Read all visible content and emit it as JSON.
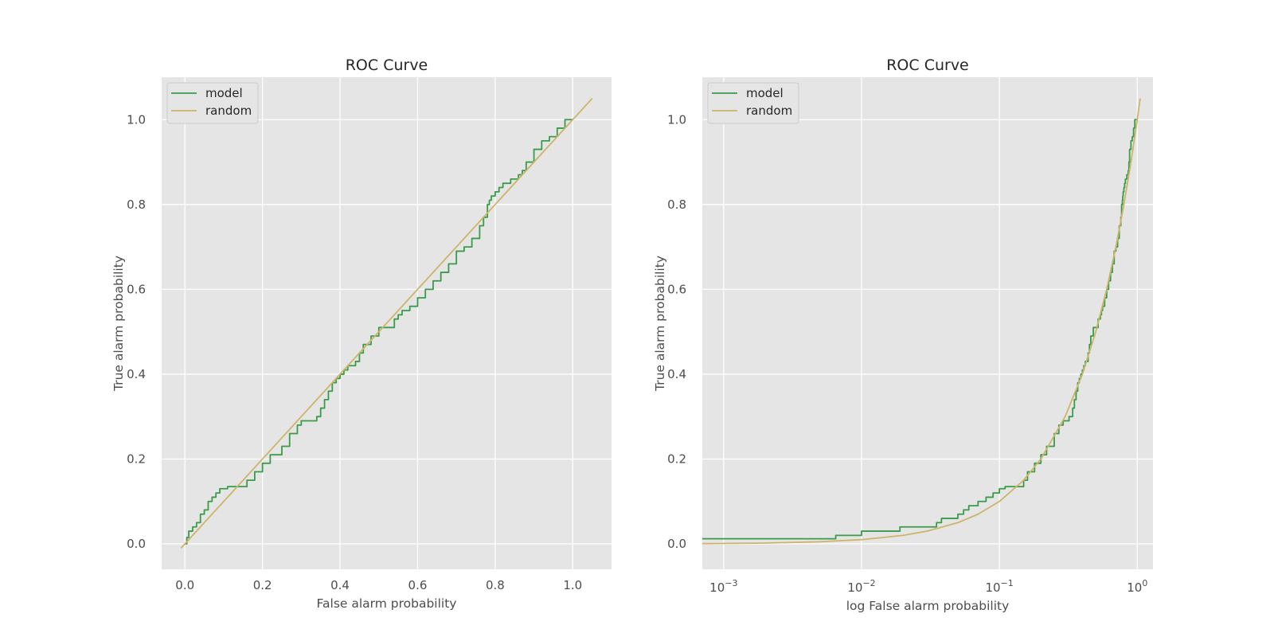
{
  "colors": {
    "model": "#3a9b4a",
    "random": "#cdb46b",
    "plot_bg": "#e5e5e5",
    "grid": "#ffffff",
    "text": "#4d4d4d"
  },
  "chart_data": [
    {
      "type": "line",
      "title": "ROC Curve",
      "xlabel": "False alarm probability",
      "ylabel": "True alarm probability",
      "xscale": "linear",
      "xlim": [
        -0.06,
        1.1
      ],
      "ylim": [
        -0.06,
        1.1
      ],
      "xticks": [
        0.0,
        0.2,
        0.4,
        0.6,
        0.8,
        1.0
      ],
      "xtick_labels": [
        "0.0",
        "0.2",
        "0.4",
        "0.6",
        "0.8",
        "1.0"
      ],
      "yticks": [
        0.0,
        0.2,
        0.4,
        0.6,
        0.8,
        1.0
      ],
      "ytick_labels": [
        "0.0",
        "0.2",
        "0.4",
        "0.6",
        "0.8",
        "1.0"
      ],
      "legend": {
        "position": "top-left",
        "entries": [
          "model",
          "random"
        ]
      },
      "series": [
        {
          "name": "model",
          "step": true,
          "x": [
            0.0,
            0.005,
            0.01,
            0.02,
            0.03,
            0.04,
            0.05,
            0.06,
            0.07,
            0.08,
            0.09,
            0.1,
            0.11,
            0.15,
            0.16,
            0.18,
            0.2,
            0.22,
            0.25,
            0.27,
            0.29,
            0.3,
            0.32,
            0.34,
            0.35,
            0.36,
            0.37,
            0.38,
            0.39,
            0.4,
            0.41,
            0.42,
            0.44,
            0.45,
            0.46,
            0.48,
            0.5,
            0.52,
            0.54,
            0.55,
            0.56,
            0.58,
            0.6,
            0.62,
            0.64,
            0.66,
            0.68,
            0.7,
            0.72,
            0.74,
            0.76,
            0.77,
            0.78,
            0.785,
            0.79,
            0.8,
            0.81,
            0.82,
            0.84,
            0.86,
            0.87,
            0.88,
            0.9,
            0.92,
            0.94,
            0.96,
            0.98,
            1.0
          ],
          "y": [
            0.0,
            0.015,
            0.03,
            0.04,
            0.05,
            0.07,
            0.08,
            0.1,
            0.11,
            0.12,
            0.13,
            0.13,
            0.135,
            0.135,
            0.15,
            0.17,
            0.19,
            0.21,
            0.23,
            0.26,
            0.28,
            0.29,
            0.29,
            0.3,
            0.32,
            0.34,
            0.36,
            0.38,
            0.39,
            0.4,
            0.41,
            0.42,
            0.43,
            0.45,
            0.47,
            0.49,
            0.51,
            0.51,
            0.53,
            0.54,
            0.55,
            0.56,
            0.58,
            0.6,
            0.62,
            0.64,
            0.66,
            0.69,
            0.7,
            0.72,
            0.75,
            0.77,
            0.8,
            0.81,
            0.82,
            0.83,
            0.84,
            0.85,
            0.86,
            0.87,
            0.88,
            0.9,
            0.93,
            0.95,
            0.96,
            0.98,
            1.0,
            1.0
          ]
        },
        {
          "name": "random",
          "step": false,
          "x": [
            -0.01,
            1.05
          ],
          "y": [
            -0.01,
            1.05
          ]
        }
      ]
    },
    {
      "type": "line",
      "title": "ROC Curve",
      "xlabel": "log False alarm probability",
      "ylabel": "True alarm probability",
      "xscale": "log",
      "xlim": [
        0.0007,
        1.3
      ],
      "ylim": [
        -0.06,
        1.1
      ],
      "xticks": [
        0.001,
        0.01,
        0.1,
        1
      ],
      "xtick_labels": [
        {
          "base": "10",
          "exp": "−3"
        },
        {
          "base": "10",
          "exp": "−2"
        },
        {
          "base": "10",
          "exp": "−1"
        },
        {
          "base": "10",
          "exp": "0"
        }
      ],
      "yticks": [
        0.0,
        0.2,
        0.4,
        0.6,
        0.8,
        1.0
      ],
      "ytick_labels": [
        "0.0",
        "0.2",
        "0.4",
        "0.6",
        "0.8",
        "1.0"
      ],
      "legend": {
        "position": "top-left",
        "entries": [
          "model",
          "random"
        ]
      },
      "series": [
        {
          "name": "model",
          "step": true,
          "x": [
            0.0007,
            0.0065,
            0.01,
            0.019,
            0.035,
            0.038,
            0.05,
            0.055,
            0.06,
            0.07,
            0.08,
            0.09,
            0.1,
            0.11,
            0.15,
            0.16,
            0.18,
            0.2,
            0.22,
            0.25,
            0.27,
            0.29,
            0.3,
            0.32,
            0.34,
            0.35,
            0.36,
            0.37,
            0.38,
            0.39,
            0.4,
            0.41,
            0.42,
            0.44,
            0.45,
            0.46,
            0.48,
            0.5,
            0.52,
            0.54,
            0.55,
            0.56,
            0.58,
            0.6,
            0.62,
            0.64,
            0.66,
            0.68,
            0.7,
            0.72,
            0.74,
            0.76,
            0.77,
            0.78,
            0.785,
            0.79,
            0.8,
            0.81,
            0.82,
            0.84,
            0.86,
            0.87,
            0.88,
            0.9,
            0.92,
            0.94,
            0.96,
            0.98,
            1.0
          ],
          "y": [
            0.012,
            0.02,
            0.03,
            0.04,
            0.05,
            0.06,
            0.07,
            0.08,
            0.09,
            0.1,
            0.11,
            0.12,
            0.13,
            0.135,
            0.15,
            0.17,
            0.19,
            0.21,
            0.23,
            0.26,
            0.28,
            0.29,
            0.29,
            0.3,
            0.32,
            0.34,
            0.36,
            0.38,
            0.39,
            0.4,
            0.41,
            0.42,
            0.43,
            0.45,
            0.47,
            0.49,
            0.51,
            0.51,
            0.53,
            0.54,
            0.55,
            0.56,
            0.58,
            0.6,
            0.62,
            0.64,
            0.66,
            0.69,
            0.7,
            0.72,
            0.75,
            0.77,
            0.8,
            0.81,
            0.82,
            0.83,
            0.84,
            0.85,
            0.86,
            0.87,
            0.88,
            0.9,
            0.93,
            0.95,
            0.96,
            0.98,
            1.0,
            1.0,
            1.0
          ]
        },
        {
          "name": "random",
          "step": false,
          "curve": "y = x",
          "x": [
            0.0007,
            0.002,
            0.005,
            0.01,
            0.02,
            0.03,
            0.05,
            0.07,
            0.1,
            0.15,
            0.2,
            0.3,
            0.4,
            0.5,
            0.6,
            0.7,
            0.8,
            0.9,
            1.0,
            1.05
          ],
          "y": [
            0.0007,
            0.002,
            0.005,
            0.01,
            0.02,
            0.03,
            0.05,
            0.07,
            0.1,
            0.15,
            0.2,
            0.3,
            0.4,
            0.5,
            0.6,
            0.7,
            0.8,
            0.9,
            1.0,
            1.05
          ]
        }
      ]
    }
  ]
}
